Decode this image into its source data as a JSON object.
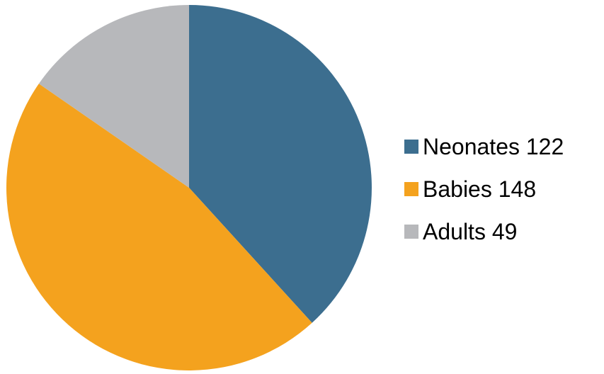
{
  "chart_data": {
    "type": "pie",
    "title": "",
    "categories": [
      "Neonates",
      "Babies",
      "Adults"
    ],
    "values": [
      122,
      148,
      49
    ],
    "colors": [
      "#3c6e8f",
      "#f4a21e",
      "#b7b8bb"
    ],
    "legend": {
      "placement": "right",
      "entries": [
        "Neonates 122",
        "Babies 148",
        "Adults 49"
      ]
    },
    "start_angle": "12 o'clock",
    "direction": "clockwise"
  }
}
